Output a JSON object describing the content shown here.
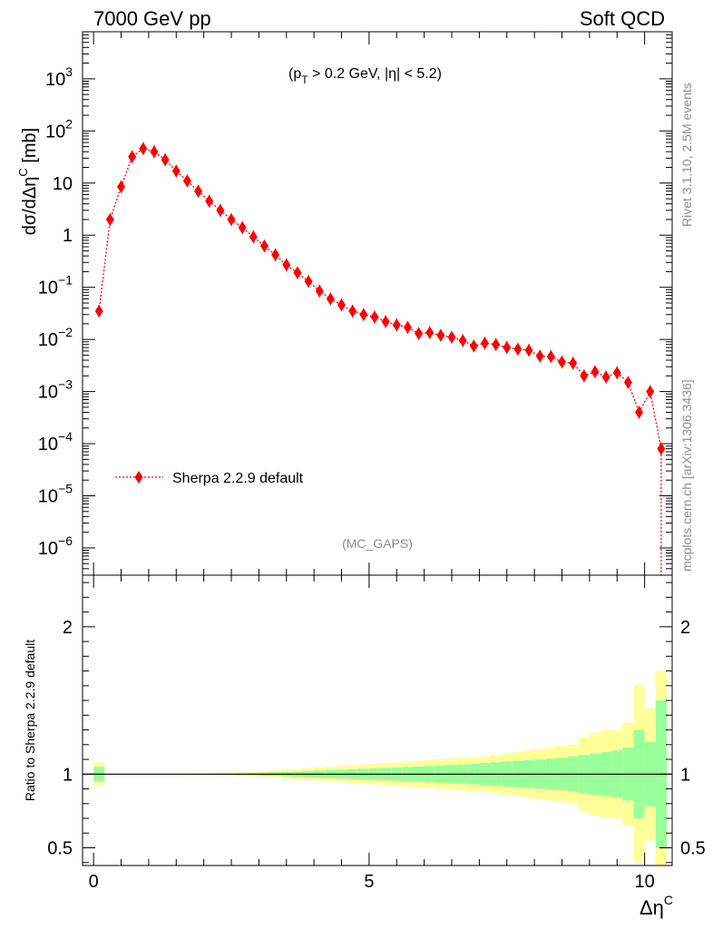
{
  "header": {
    "left_label": "7000 GeV pp",
    "right_label": "Soft QCD"
  },
  "side_text": {
    "rivet": "Rivet 3.1.10,  2.5M events",
    "mcplots": "mcplots.cern.ch [arXiv:1306.3436]"
  },
  "chart_data": [
    {
      "type": "scatter",
      "panel": "main",
      "ylabel": "dσ/dΔη",
      "ylabel_sup": "C",
      "ylabel_unit": " [mb]",
      "yscale": "log",
      "ylim": [
        3e-07,
        8000
      ],
      "xlim": [
        -0.2,
        10.5
      ],
      "cut_label": "(pT > 0.2 GeV, |η| < 5.2)",
      "cut_parts": {
        "open": "(p",
        "sub": "T",
        "rest": " > 0.2 GeV, |η| < 5.2)"
      },
      "analysis_label": "(MC_GAPS)",
      "y_ticks": [
        {
          "value": 1e-06,
          "base": "10",
          "exp": "−6"
        },
        {
          "value": 1e-05,
          "base": "10",
          "exp": "−5"
        },
        {
          "value": 0.0001,
          "base": "10",
          "exp": "−4"
        },
        {
          "value": 0.001,
          "base": "10",
          "exp": "−3"
        },
        {
          "value": 0.01,
          "base": "10",
          "exp": "−2"
        },
        {
          "value": 0.1,
          "base": "10",
          "exp": "−1"
        },
        {
          "value": 1,
          "base": "1",
          "exp": ""
        },
        {
          "value": 10,
          "base": "10",
          "exp": ""
        },
        {
          "value": 100,
          "base": "10",
          "exp": "2"
        },
        {
          "value": 1000,
          "base": "10",
          "exp": "3"
        }
      ],
      "series": [
        {
          "name": "Sherpa 2.2.9 default",
          "color": "#ff0000",
          "x": [
            0.1,
            0.3,
            0.5,
            0.7,
            0.9,
            1.1,
            1.3,
            1.5,
            1.7,
            1.9,
            2.1,
            2.3,
            2.5,
            2.7,
            2.9,
            3.1,
            3.3,
            3.5,
            3.7,
            3.9,
            4.1,
            4.3,
            4.5,
            4.7,
            4.9,
            5.1,
            5.3,
            5.5,
            5.7,
            5.9,
            6.1,
            6.3,
            6.5,
            6.7,
            6.9,
            7.1,
            7.3,
            7.5,
            7.7,
            7.9,
            8.1,
            8.3,
            8.5,
            8.7,
            8.9,
            9.1,
            9.3,
            9.5,
            9.7,
            9.9,
            10.1,
            10.3
          ],
          "y": [
            0.035,
            2.0,
            8.5,
            32,
            46,
            40,
            28,
            17,
            11,
            7.0,
            4.5,
            3.0,
            2.0,
            1.4,
            0.93,
            0.62,
            0.42,
            0.27,
            0.19,
            0.13,
            0.085,
            0.06,
            0.046,
            0.035,
            0.03,
            0.027,
            0.022,
            0.019,
            0.017,
            0.013,
            0.0135,
            0.012,
            0.011,
            0.0095,
            0.0075,
            0.0085,
            0.008,
            0.007,
            0.0065,
            0.0062,
            0.0048,
            0.0047,
            0.0037,
            0.0035,
            0.002,
            0.0024,
            0.0019,
            0.0023,
            0.0015,
            0.0004,
            0.001,
            8e-05
          ]
        }
      ]
    },
    {
      "type": "area",
      "panel": "ratio",
      "ylabel": "Ratio to Sherpa 2.2.9 default",
      "xlabel": "Δη",
      "xlabel_sup": "C",
      "ylim": [
        0.38,
        2.35
      ],
      "xlim": [
        -0.2,
        10.5
      ],
      "x_ticks": [
        {
          "value": 0,
          "label": "0"
        },
        {
          "value": 5,
          "label": "5"
        },
        {
          "value": 10,
          "label": "10"
        }
      ],
      "y_ticks": [
        {
          "value": 0.5,
          "label": "0.5"
        },
        {
          "value": 1,
          "label": "1"
        },
        {
          "value": 2,
          "label": "2"
        }
      ],
      "reference": 1.0,
      "bins_low": [
        0.0,
        0.2,
        0.4,
        0.6,
        0.8,
        1.0,
        1.2,
        1.4,
        1.6,
        1.8,
        2.0,
        2.2,
        2.4,
        2.6,
        2.8,
        3.0,
        3.2,
        3.4,
        3.6,
        3.8,
        4.0,
        4.2,
        4.4,
        4.6,
        4.8,
        5.0,
        5.2,
        5.4,
        5.6,
        5.8,
        6.0,
        6.2,
        6.4,
        6.6,
        6.8,
        7.0,
        7.2,
        7.4,
        7.6,
        7.8,
        8.0,
        8.2,
        8.4,
        8.6,
        8.8,
        9.0,
        9.2,
        9.4,
        9.6,
        9.8,
        10.0,
        10.2
      ],
      "bin_width": 0.2,
      "stat_band_color": "#99ff99",
      "total_band_color": "#ffff99",
      "stat_band": [
        0.05,
        0.002,
        0.002,
        0.002,
        0.002,
        0.002,
        0.002,
        0.002,
        0.002,
        0.003,
        0.003,
        0.004,
        0.005,
        0.006,
        0.008,
        0.01,
        0.012,
        0.015,
        0.018,
        0.021,
        0.024,
        0.027,
        0.03,
        0.033,
        0.036,
        0.039,
        0.042,
        0.045,
        0.048,
        0.051,
        0.055,
        0.058,
        0.062,
        0.065,
        0.07,
        0.075,
        0.08,
        0.085,
        0.09,
        0.095,
        0.1,
        0.105,
        0.11,
        0.12,
        0.13,
        0.14,
        0.15,
        0.16,
        0.18,
        0.3,
        0.22,
        0.5
      ],
      "total_band": [
        0.08,
        0.003,
        0.003,
        0.003,
        0.003,
        0.003,
        0.003,
        0.004,
        0.005,
        0.006,
        0.007,
        0.008,
        0.01,
        0.013,
        0.016,
        0.02,
        0.025,
        0.03,
        0.035,
        0.04,
        0.045,
        0.05,
        0.055,
        0.06,
        0.065,
        0.07,
        0.075,
        0.08,
        0.085,
        0.09,
        0.095,
        0.1,
        0.105,
        0.11,
        0.115,
        0.12,
        0.13,
        0.14,
        0.15,
        0.16,
        0.17,
        0.18,
        0.19,
        0.2,
        0.25,
        0.28,
        0.3,
        0.3,
        0.35,
        0.6,
        0.45,
        0.7
      ]
    }
  ]
}
